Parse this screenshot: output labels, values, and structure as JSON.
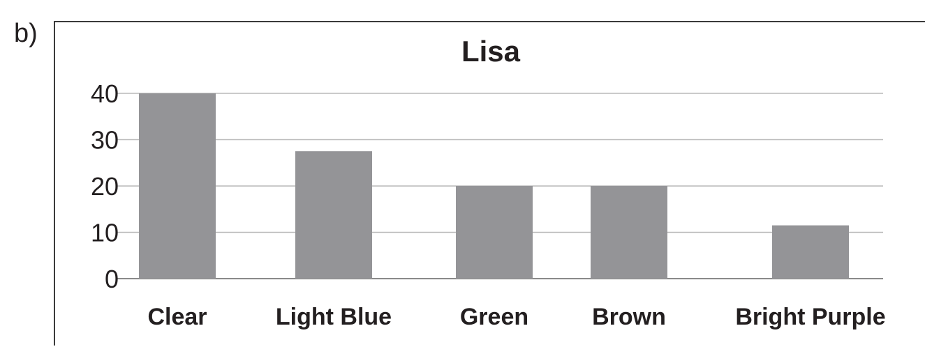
{
  "part_label": "b)",
  "chart_data": {
    "type": "bar",
    "title": "Lisa",
    "xlabel": "",
    "ylabel": "",
    "categories": [
      "Clear",
      "Light Blue",
      "Green",
      "Brown",
      "Bright Purple"
    ],
    "values": [
      40,
      27.5,
      20,
      20,
      11.5
    ],
    "ylim": [
      0,
      40
    ],
    "yticks": [
      0,
      10,
      20,
      30,
      40
    ],
    "grid": true,
    "legend": "none",
    "bar_color": "#949497",
    "grid_color": "#b9b9b9",
    "frame_color": "#3a3a3a"
  }
}
